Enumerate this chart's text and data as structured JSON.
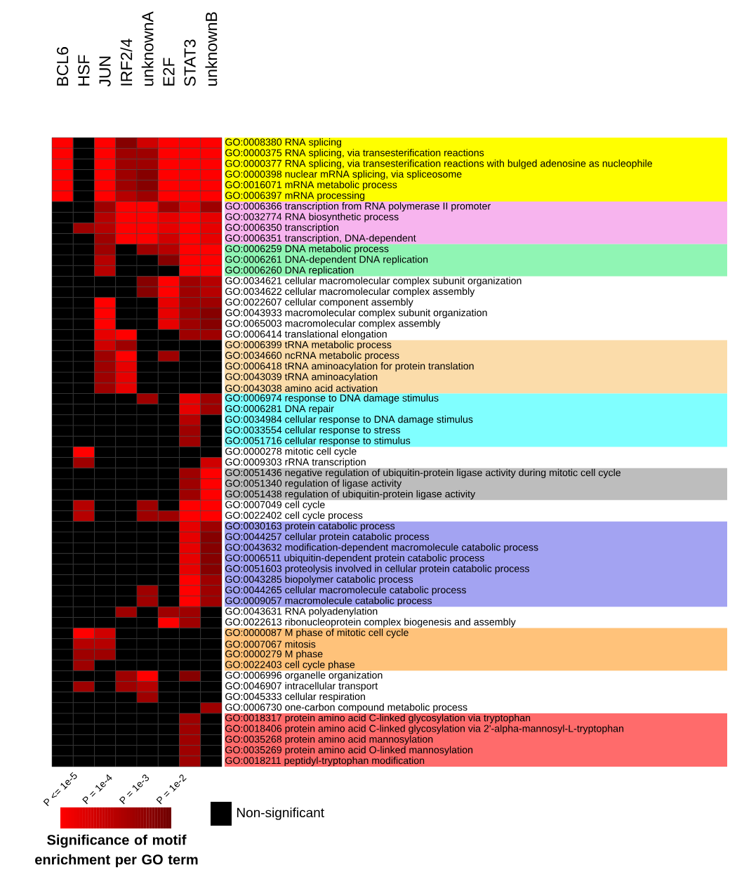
{
  "chart_data": {
    "type": "heatmap",
    "clabel": "Significance of motif enrichment per GO term",
    "categories": [
      "BCL6",
      "HSF",
      "JUN",
      "IRF2/4",
      "unknownA",
      "E2F",
      "STAT3",
      "unknownB"
    ],
    "y_categories": [
      "GO:0008380 RNA splicing",
      "GO:0000375 RNA splicing, via transesterification reactions",
      "GO:0000377 RNA splicing, via transesterification reactions with bulged adenosine as nucleophile",
      "GO:0000398 nuclear mRNA splicing, via spliceosome",
      "GO:0016071 mRNA metabolic process",
      "GO:0006397 mRNA processing",
      "GO:0006366 transcription from RNA polymerase II promoter",
      "GO:0032774 RNA biosynthetic process",
      "GO:0006350 transcription",
      "GO:0006351 transcription, DNA-dependent",
      "GO:0006259 DNA metabolic process",
      "GO:0006261 DNA-dependent DNA replication",
      "GO:0006260 DNA replication",
      "GO:0034621 cellular macromolecular complex subunit organization",
      "GO:0034622 cellular macromolecular complex assembly",
      "GO:0022607 cellular component assembly",
      "GO:0043933 macromolecular complex subunit organization",
      "GO:0065003 macromolecular complex assembly",
      "GO:0006414 translational elongation",
      "GO:0006399 tRNA metabolic process",
      "GO:0034660 ncRNA metabolic process",
      "GO:0006418 tRNA aminoacylation for protein translation",
      "GO:0043039 tRNA aminoacylation",
      "GO:0043038 amino acid activation",
      "GO:0006974 response to DNA damage stimulus",
      "GO:0006281 DNA repair",
      "GO:0034984 cellular response to DNA damage stimulus",
      "GO:0033554 cellular response to stress",
      "GO:0051716 cellular response to stimulus",
      "GO:0000278 mitotic cell cycle",
      "GO:0009303 rRNA transcription",
      "GO:0051436 negative regulation of ubiquitin-protein ligase activity during mitotic cell cycle",
      "GO:0051340 regulation of ligase activity",
      "GO:0051438 regulation of ubiquitin-protein ligase activity",
      "GO:0007049 cell cycle",
      "GO:0022402 cell cycle process",
      "GO:0030163 protein catabolic process",
      "GO:0044257 cellular protein catabolic process",
      "GO:0043632 modification-dependent macromolecule catabolic process",
      "GO:0006511 ubiquitin-dependent protein catabolic process",
      "GO:0051603 proteolysis involved in cellular protein catabolic process",
      "GO:0043285 biopolymer catabolic process",
      "GO:0044265 cellular macromolecule catabolic process",
      "GO:0009057 macromolecule catabolic process",
      "GO:0043631 RNA polyadenylation",
      "GO:0022613 ribonucleoprotein complex biogenesis and assembly",
      "GO:0000087 M phase of mitotic cell cycle",
      "GO:0007067 mitosis",
      "GO:0000279 M phase",
      "GO:0022403 cell cycle phase",
      "GO:0006996 organelle organization",
      "GO:0046907 intracellular transport",
      "GO:0045333 cellular respiration",
      "GO:0006730 one-carbon compound metabolic process",
      "GO:0018317 protein amino acid C-linked glycosylation via tryptophan",
      "GO:0018406 protein amino acid C-linked glycosylation via 2'-alpha-mannosyl-L-tryptophan",
      "GO:0035268 protein amino acid mannosylation",
      "GO:0035269 protein amino acid O-linked mannosylation",
      "GO:0018211 peptidyl-tryptophan modification"
    ],
    "cells": [
      [
        -5,
        null,
        -5,
        -2.5,
        -4,
        -5,
        -5,
        -5
      ],
      [
        -5,
        null,
        -5,
        -3,
        -3,
        -5,
        -5,
        -5
      ],
      [
        -5,
        null,
        -5,
        -3,
        -3,
        -5,
        -5,
        -5
      ],
      [
        -5,
        null,
        -5,
        -3,
        -2.5,
        -5,
        -5,
        -5
      ],
      [
        -5,
        null,
        -5,
        -3,
        -2.5,
        -5,
        -5,
        -5
      ],
      [
        -5,
        null,
        -5,
        -3.5,
        -3,
        -5,
        -5,
        -5
      ],
      [
        null,
        null,
        -3,
        -5,
        -5,
        -3,
        -4.5,
        -3
      ],
      [
        null,
        null,
        -3.5,
        -5,
        -5,
        -4.5,
        -5,
        -4.5
      ],
      [
        null,
        -3,
        -3.5,
        -5,
        -5,
        -4.5,
        -5,
        -4.5
      ],
      [
        null,
        null,
        -3,
        -5,
        -5,
        -4,
        -5,
        -4.5
      ],
      [
        null,
        null,
        -3,
        null,
        -3,
        -3.5,
        -5,
        -5
      ],
      [
        null,
        null,
        -3.5,
        null,
        null,
        -2.5,
        -5,
        -5
      ],
      [
        null,
        null,
        -3.5,
        null,
        null,
        null,
        -5,
        -5
      ],
      [
        null,
        null,
        null,
        null,
        -2.5,
        -5,
        -3,
        -3.5
      ],
      [
        null,
        null,
        null,
        null,
        -2.5,
        -5,
        -3,
        -3.5
      ],
      [
        null,
        null,
        -5,
        null,
        null,
        -4.5,
        -3,
        -3
      ],
      [
        null,
        null,
        -5,
        null,
        null,
        -4.5,
        -3,
        -2.5
      ],
      [
        null,
        null,
        -5,
        null,
        null,
        -4.5,
        -3,
        -2.5
      ],
      [
        null,
        null,
        -4.5,
        -5,
        null,
        null,
        -3,
        -3
      ],
      [
        null,
        null,
        -4,
        -3,
        null,
        null,
        null,
        null
      ],
      [
        null,
        null,
        -3,
        -5,
        null,
        -3,
        null,
        null
      ],
      [
        null,
        null,
        -3,
        -4.5,
        null,
        null,
        null,
        null
      ],
      [
        null,
        null,
        -3,
        -4.5,
        null,
        null,
        null,
        null
      ],
      [
        null,
        null,
        -3,
        -4.5,
        null,
        null,
        null,
        null
      ],
      [
        null,
        null,
        null,
        null,
        -3,
        null,
        -4.5,
        -3
      ],
      [
        null,
        null,
        null,
        null,
        null,
        null,
        -4.5,
        -3
      ],
      [
        null,
        null,
        null,
        null,
        null,
        null,
        -3.5,
        null
      ],
      [
        null,
        null,
        null,
        null,
        null,
        null,
        -3,
        null
      ],
      [
        null,
        null,
        null,
        null,
        null,
        null,
        -3,
        null
      ],
      [
        null,
        -5,
        null,
        null,
        null,
        null,
        null,
        null
      ],
      [
        null,
        -3,
        null,
        null,
        null,
        null,
        null,
        -4
      ],
      [
        null,
        null,
        null,
        null,
        null,
        null,
        -3,
        -5
      ],
      [
        null,
        null,
        null,
        null,
        null,
        null,
        -3,
        -5
      ],
      [
        null,
        null,
        null,
        null,
        null,
        null,
        -3,
        -5
      ],
      [
        null,
        -3.5,
        null,
        null,
        -3,
        null,
        -5,
        -5
      ],
      [
        null,
        -3.5,
        null,
        null,
        -3,
        -3,
        -5,
        -5
      ],
      [
        null,
        null,
        null,
        null,
        null,
        null,
        -4.5,
        -3
      ],
      [
        null,
        null,
        null,
        null,
        null,
        null,
        -4.5,
        -2.5
      ],
      [
        null,
        null,
        null,
        null,
        null,
        null,
        -4.5,
        -2.5
      ],
      [
        null,
        null,
        null,
        null,
        null,
        null,
        -4.5,
        -2.5
      ],
      [
        null,
        null,
        null,
        null,
        null,
        null,
        -4.5,
        -2.5
      ],
      [
        null,
        null,
        null,
        null,
        null,
        null,
        -5,
        -3
      ],
      [
        null,
        null,
        null,
        null,
        -3,
        null,
        -5,
        -3
      ],
      [
        null,
        null,
        null,
        null,
        -3,
        null,
        -5,
        -3
      ],
      [
        null,
        null,
        null,
        -3,
        null,
        -3,
        -3,
        null
      ],
      [
        null,
        null,
        null,
        null,
        null,
        -5,
        -3,
        null
      ],
      [
        null,
        -5,
        -4,
        null,
        null,
        null,
        null,
        null
      ],
      [
        null,
        -3.5,
        -3.5,
        null,
        null,
        null,
        null,
        null
      ],
      [
        null,
        -3,
        -3,
        null,
        null,
        null,
        null,
        null
      ],
      [
        null,
        -3,
        null,
        null,
        null,
        null,
        null,
        null
      ],
      [
        null,
        null,
        null,
        -3,
        -5,
        null,
        -2.5,
        null
      ],
      [
        null,
        -3,
        null,
        -3,
        -3.5,
        null,
        null,
        null
      ],
      [
        null,
        null,
        null,
        null,
        -3,
        null,
        null,
        null
      ],
      [
        null,
        null,
        null,
        null,
        null,
        null,
        null,
        -3
      ],
      [
        null,
        null,
        null,
        null,
        null,
        null,
        -3,
        null
      ],
      [
        null,
        null,
        null,
        null,
        null,
        null,
        -3,
        null
      ],
      [
        null,
        null,
        null,
        null,
        null,
        null,
        -3,
        null
      ],
      [
        null,
        null,
        null,
        null,
        null,
        null,
        -3,
        null
      ],
      [
        null,
        null,
        null,
        null,
        null,
        null,
        -3,
        null
      ]
    ],
    "clim": [
      -5,
      -2
    ],
    "cticks": [
      {
        "value": -5,
        "label": "P <= 1e-5"
      },
      {
        "value": -4,
        "label": "P = 1e-4"
      },
      {
        "value": -3,
        "label": "P = 1e-3"
      },
      {
        "value": -2,
        "label": "P = 1e-2"
      }
    ],
    "annotations": [
      "Non-significant"
    ]
  }
}
